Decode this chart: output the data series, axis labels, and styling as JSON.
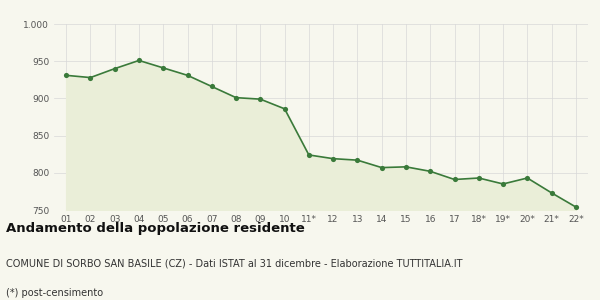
{
  "x_labels": [
    "01",
    "02",
    "03",
    "04",
    "05",
    "06",
    "07",
    "08",
    "09",
    "10",
    "11*",
    "12",
    "13",
    "14",
    "15",
    "16",
    "17",
    "18*",
    "19*",
    "20*",
    "21*",
    "22*"
  ],
  "y_values": [
    931,
    928,
    940,
    951,
    941,
    931,
    916,
    901,
    899,
    886,
    824,
    819,
    817,
    807,
    808,
    802,
    791,
    793,
    785,
    793,
    773,
    754
  ],
  "line_color": "#3a7a3a",
  "fill_color": "#eaeed8",
  "marker_color": "#3a7a3a",
  "background_color": "#f7f7ee",
  "grid_color": "#d8d8d8",
  "ylim": [
    750,
    1000
  ],
  "yticks": [
    750,
    800,
    850,
    900,
    950,
    1000
  ],
  "title": "Andamento della popolazione residente",
  "subtitle": "COMUNE DI SORBO SAN BASILE (CZ) - Dati ISTAT al 31 dicembre - Elaborazione TUTTITALIA.IT",
  "footnote": "(*) post-censimento",
  "title_fontsize": 9.5,
  "subtitle_fontsize": 7,
  "footnote_fontsize": 7
}
